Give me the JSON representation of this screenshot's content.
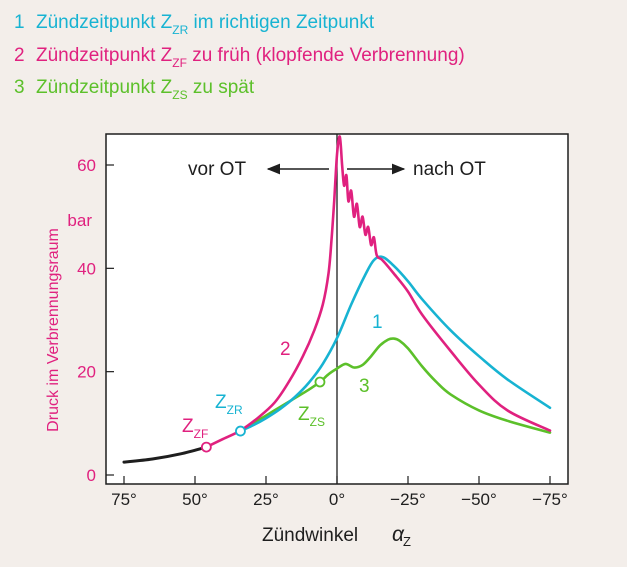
{
  "legend": [
    {
      "num": "1",
      "text": "Zündzeitpunkt Z",
      "sub": "ZR",
      "rest": " im richtigen Zeitpunkt",
      "color": "#17b3d2"
    },
    {
      "num": "2",
      "text": "Zündzeitpunkt Z",
      "sub": "ZF",
      "rest": " zu früh (klopfende Verbrennung)",
      "color": "#e0217f"
    },
    {
      "num": "3",
      "text": "Zündzeitpunkt Z",
      "sub": "ZS",
      "rest": " zu spät",
      "color": "#5cc02a"
    }
  ],
  "colors": {
    "ZR": "#17b3d2",
    "ZF": "#e0217f",
    "ZS": "#5cc02a",
    "base": "#1e1e1e"
  },
  "chart_data": {
    "type": "line",
    "xlabel": "Zündwinkel",
    "xlabel_symbol": "α",
    "xlabel_sub": "Z",
    "ylabel": "Druck im Verbrennungsraum",
    "y_unit": "bar",
    "xlim": [
      75,
      -75
    ],
    "ylim": [
      0,
      66
    ],
    "x_ticks": [
      {
        "value": 75,
        "label": "75°"
      },
      {
        "value": 50,
        "label": "50°"
      },
      {
        "value": 25,
        "label": "25°"
      },
      {
        "value": 0,
        "label": "0°"
      },
      {
        "value": -25,
        "label": "−25°"
      },
      {
        "value": -50,
        "label": "−50°"
      },
      {
        "value": -75,
        "label": "−75°"
      }
    ],
    "y_ticks": [
      {
        "value": 0,
        "label": "0"
      },
      {
        "value": 20,
        "label": "20"
      },
      {
        "value": 40,
        "label": "40"
      },
      {
        "value": 60,
        "label": "60"
      }
    ],
    "region_labels": {
      "before": "vor OT",
      "after": "nach OT"
    },
    "base_curve": {
      "x": [
        75,
        65,
        55,
        46
      ],
      "y": [
        2.5,
        3.1,
        4.1,
        5.4
      ]
    },
    "series": [
      {
        "name": "1",
        "color": "#17b3d2",
        "x": [
          34,
          30,
          25,
          20,
          15,
          10,
          5,
          0,
          -5,
          -10,
          -13,
          -16,
          -20,
          -25,
          -30,
          -40,
          -50,
          -60,
          -75
        ],
        "y": [
          8.5,
          9.5,
          11,
          12.8,
          15,
          17.8,
          21.5,
          26.5,
          33,
          38.8,
          41.6,
          42.2,
          40.5,
          37.5,
          34,
          28,
          23,
          18.5,
          13
        ]
      },
      {
        "name": "2",
        "color": "#e0217f",
        "x": [
          46,
          40,
          34,
          28,
          22,
          17,
          12,
          8,
          5,
          3,
          2,
          1,
          0,
          -1,
          -1.8,
          -2.5,
          -3.3,
          -4,
          -5,
          -6,
          -7,
          -8,
          -9,
          -10,
          -11,
          -12,
          -13,
          -14,
          -16,
          -20,
          -25,
          -30,
          -40,
          -50,
          -60,
          -75
        ],
        "y": [
          5.4,
          7,
          8.6,
          11,
          14,
          18,
          23,
          28,
          33,
          39,
          45,
          53,
          62,
          65.5,
          60,
          56,
          58,
          53,
          55,
          50,
          52.5,
          48,
          50,
          46.5,
          48,
          44.5,
          46,
          42.5,
          41.6,
          39,
          35.5,
          31,
          24,
          17.5,
          12.5,
          8.6
        ]
      },
      {
        "name": "3",
        "color": "#5cc02a",
        "x": [
          34,
          28,
          22,
          16,
          10,
          6,
          3,
          0,
          -3,
          -6,
          -9,
          -12,
          -15,
          -18,
          -20,
          -22,
          -25,
          -30,
          -35,
          -40,
          -50,
          -60,
          -75
        ],
        "y": [
          8.5,
          10.5,
          12.5,
          14.5,
          16.5,
          18,
          19.5,
          20.6,
          21.5,
          20.8,
          21.3,
          23,
          25,
          26.2,
          26.4,
          26,
          24.5,
          21,
          18,
          15.6,
          12.5,
          10.5,
          8.2
        ]
      }
    ],
    "markers": [
      {
        "label": "Z",
        "sub": "ZF",
        "x": 46,
        "y": 5.4,
        "color": "#e0217f"
      },
      {
        "label": "Z",
        "sub": "ZR",
        "x": 34,
        "y": 8.5,
        "color": "#17b3d2"
      },
      {
        "label": "Z",
        "sub": "ZS",
        "x": 6,
        "y": 18,
        "color": "#5cc02a"
      }
    ],
    "grid": false
  }
}
